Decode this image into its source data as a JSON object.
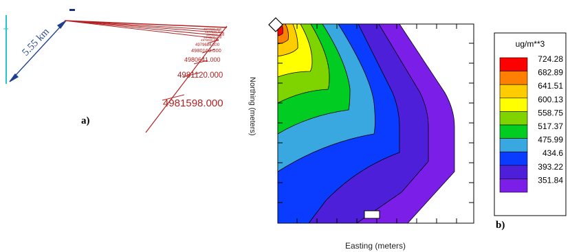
{
  "panel_a": {
    "label": "a)",
    "distance_label": "5.55 km",
    "northing_ticks": [
      "4981598.000",
      "4981120.000",
      "4980641.000",
      "4980163.000",
      "4979684.000"
    ],
    "colors": {
      "grid_line": "#b22222",
      "arrow": "#1f3f8f",
      "axis": "#22c7c7",
      "text": "#b22222"
    }
  },
  "panel_b": {
    "label": "b)",
    "x_axis_label": "Easting (meters)",
    "y_axis_label": "Northing (meters)",
    "legend_title": "ug/m**3",
    "legend": [
      {
        "value": "724.28",
        "color": "#ff0000"
      },
      {
        "value": "682.89",
        "color": "#ff7f00"
      },
      {
        "value": "641.51",
        "color": "#ffcc00"
      },
      {
        "value": "600.13",
        "color": "#ffff00"
      },
      {
        "value": "558.75",
        "color": "#7fd400"
      },
      {
        "value": "517.37",
        "color": "#00cc22"
      },
      {
        "value": "475.99",
        "color": "#3aa8e0"
      },
      {
        "value": "434.6",
        "color": "#0a3cff"
      },
      {
        "value": "393.22",
        "color": "#4d1fd9"
      },
      {
        "value": "351.84",
        "color": "#7b1fe8"
      }
    ]
  }
}
